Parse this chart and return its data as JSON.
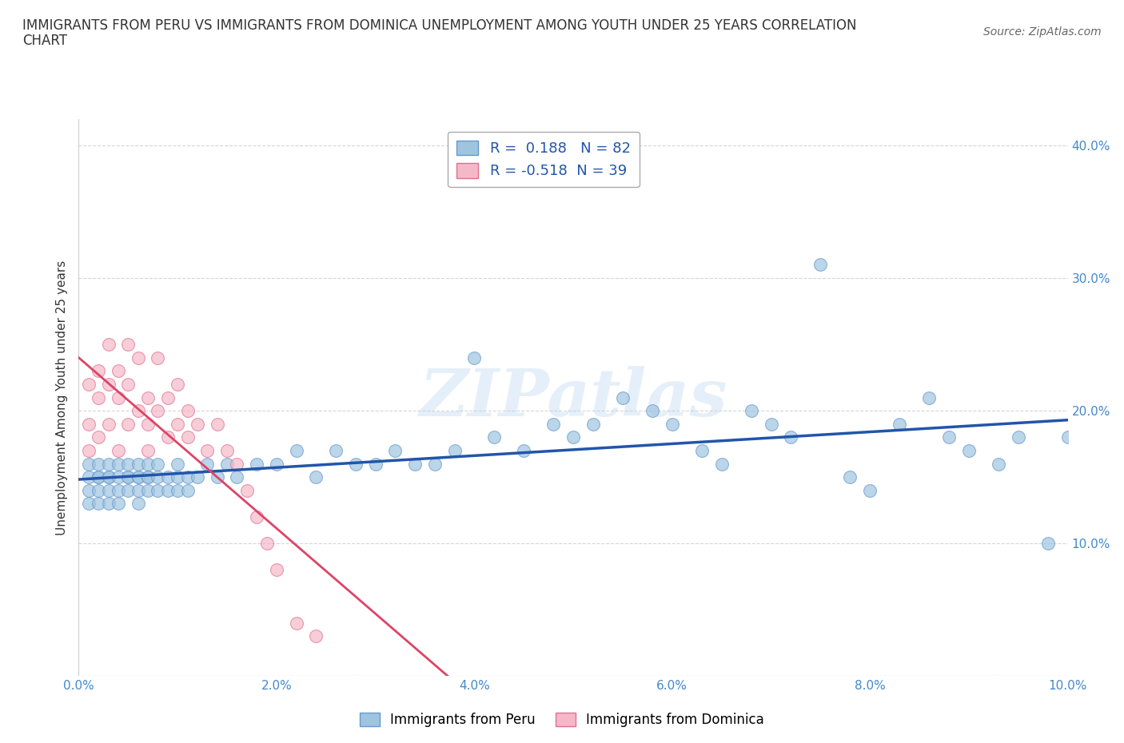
{
  "title_line1": "IMMIGRANTS FROM PERU VS IMMIGRANTS FROM DOMINICA UNEMPLOYMENT AMONG YOUTH UNDER 25 YEARS CORRELATION",
  "title_line2": "CHART",
  "source": "Source: ZipAtlas.com",
  "label_peru": "Immigrants from Peru",
  "label_dominica": "Immigrants from Dominica",
  "ylabel": "Unemployment Among Youth under 25 years",
  "xlim": [
    0.0,
    0.1
  ],
  "ylim": [
    0.0,
    0.42
  ],
  "xticks": [
    0.0,
    0.02,
    0.04,
    0.06,
    0.08,
    0.1
  ],
  "xtick_labels": [
    "0.0%",
    "2.0%",
    "4.0%",
    "6.0%",
    "8.0%",
    "10.0%"
  ],
  "yticks": [
    0.0,
    0.1,
    0.2,
    0.3,
    0.4
  ],
  "ytick_labels_right": [
    "",
    "10.0%",
    "20.0%",
    "30.0%",
    "40.0%"
  ],
  "peru_color": "#9EC4E0",
  "peru_edge": "#6699CC",
  "dominica_color": "#F5B8C8",
  "dominica_edge": "#E07090",
  "trend_peru_color": "#2255AA",
  "trend_dominica_color": "#DD4466",
  "R_peru": 0.188,
  "N_peru": 82,
  "R_dominica": -0.518,
  "N_dominica": 39,
  "watermark": "ZIPatlas",
  "peru_scatter_x": [
    0.001,
    0.001,
    0.001,
    0.001,
    0.002,
    0.002,
    0.002,
    0.002,
    0.002,
    0.003,
    0.003,
    0.003,
    0.003,
    0.003,
    0.004,
    0.004,
    0.004,
    0.004,
    0.005,
    0.005,
    0.005,
    0.005,
    0.006,
    0.006,
    0.006,
    0.006,
    0.006,
    0.007,
    0.007,
    0.007,
    0.007,
    0.008,
    0.008,
    0.008,
    0.009,
    0.009,
    0.01,
    0.01,
    0.01,
    0.011,
    0.011,
    0.012,
    0.013,
    0.014,
    0.015,
    0.016,
    0.018,
    0.02,
    0.022,
    0.024,
    0.026,
    0.028,
    0.03,
    0.032,
    0.034,
    0.036,
    0.038,
    0.04,
    0.042,
    0.045,
    0.048,
    0.05,
    0.052,
    0.055,
    0.058,
    0.06,
    0.063,
    0.065,
    0.068,
    0.07,
    0.072,
    0.075,
    0.078,
    0.08,
    0.083,
    0.086,
    0.088,
    0.09,
    0.093,
    0.095,
    0.098,
    0.1
  ],
  "peru_scatter_y": [
    0.15,
    0.13,
    0.16,
    0.14,
    0.15,
    0.14,
    0.16,
    0.13,
    0.15,
    0.14,
    0.15,
    0.16,
    0.13,
    0.15,
    0.14,
    0.16,
    0.15,
    0.13,
    0.15,
    0.14,
    0.16,
    0.15,
    0.15,
    0.14,
    0.16,
    0.13,
    0.15,
    0.15,
    0.14,
    0.16,
    0.15,
    0.15,
    0.14,
    0.16,
    0.15,
    0.14,
    0.15,
    0.14,
    0.16,
    0.15,
    0.14,
    0.15,
    0.16,
    0.15,
    0.16,
    0.15,
    0.16,
    0.16,
    0.17,
    0.15,
    0.17,
    0.16,
    0.16,
    0.17,
    0.16,
    0.16,
    0.17,
    0.24,
    0.18,
    0.17,
    0.19,
    0.18,
    0.19,
    0.21,
    0.2,
    0.19,
    0.17,
    0.16,
    0.2,
    0.19,
    0.18,
    0.31,
    0.15,
    0.14,
    0.19,
    0.21,
    0.18,
    0.17,
    0.16,
    0.18,
    0.1,
    0.18
  ],
  "dominica_scatter_x": [
    0.001,
    0.001,
    0.001,
    0.002,
    0.002,
    0.002,
    0.003,
    0.003,
    0.003,
    0.004,
    0.004,
    0.004,
    0.005,
    0.005,
    0.005,
    0.006,
    0.006,
    0.007,
    0.007,
    0.007,
    0.008,
    0.008,
    0.009,
    0.009,
    0.01,
    0.01,
    0.011,
    0.011,
    0.012,
    0.013,
    0.014,
    0.015,
    0.016,
    0.017,
    0.018,
    0.019,
    0.02,
    0.022,
    0.024
  ],
  "dominica_scatter_y": [
    0.19,
    0.22,
    0.17,
    0.23,
    0.21,
    0.18,
    0.25,
    0.19,
    0.22,
    0.21,
    0.17,
    0.23,
    0.25,
    0.19,
    0.22,
    0.2,
    0.24,
    0.21,
    0.17,
    0.19,
    0.2,
    0.24,
    0.18,
    0.21,
    0.19,
    0.22,
    0.18,
    0.2,
    0.19,
    0.17,
    0.19,
    0.17,
    0.16,
    0.14,
    0.12,
    0.1,
    0.08,
    0.04,
    0.03
  ]
}
